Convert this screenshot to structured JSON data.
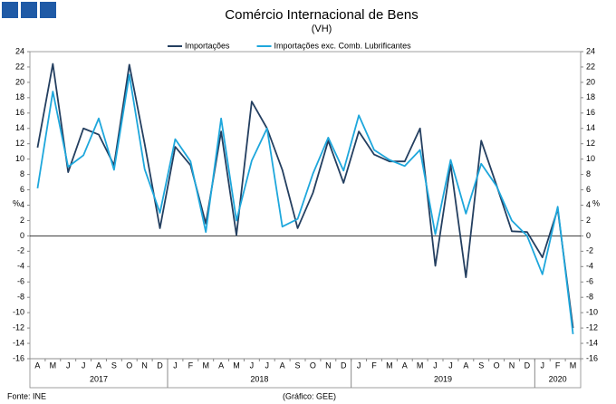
{
  "chart_data": {
    "type": "line",
    "title": "Comércio Internacional de Bens",
    "subtitle": "(VH)",
    "y_unit": "%",
    "categories": [
      "A",
      "M",
      "J",
      "J",
      "A",
      "S",
      "O",
      "N",
      "D",
      "J",
      "F",
      "M",
      "A",
      "M",
      "J",
      "J",
      "A",
      "S",
      "O",
      "N",
      "D",
      "J",
      "F",
      "M",
      "A",
      "M",
      "J",
      "J",
      "A",
      "S",
      "O",
      "N",
      "D",
      "J",
      "F",
      "M"
    ],
    "year_groups": [
      {
        "label": "2017",
        "count": 9
      },
      {
        "label": "2018",
        "count": 12
      },
      {
        "label": "2019",
        "count": 12
      },
      {
        "label": "2020",
        "count": 3
      }
    ],
    "series": [
      {
        "name": "Importações",
        "color": "#243f60",
        "values": [
          11.5,
          22.4,
          8.3,
          14.0,
          13.2,
          9.2,
          22.3,
          12.0,
          1.0,
          11.6,
          9.2,
          1.6,
          13.6,
          0.1,
          17.5,
          14.0,
          8.6,
          1.0,
          5.6,
          12.4,
          6.9,
          13.6,
          10.6,
          9.7,
          9.7,
          14.0,
          -3.9,
          9.3,
          -5.4,
          12.4,
          6.6,
          0.6,
          0.5,
          -2.8,
          3.5,
          -12.0
        ]
      },
      {
        "name": "Importações exc. Comb. Lubrificantes",
        "color": "#1ea7dc",
        "values": [
          6.2,
          18.8,
          9.0,
          10.5,
          15.3,
          8.6,
          21.0,
          8.7,
          3.0,
          12.6,
          9.7,
          0.5,
          15.3,
          2.0,
          9.8,
          14.0,
          1.2,
          2.2,
          8.1,
          12.8,
          8.5,
          15.7,
          11.2,
          9.9,
          9.1,
          11.2,
          0.2,
          9.9,
          2.9,
          9.4,
          6.5,
          2.0,
          0.0,
          -5.0,
          3.8,
          -12.8
        ]
      }
    ],
    "ylim": [
      -16,
      24
    ],
    "yticks": [
      -16,
      -14,
      -12,
      -10,
      -8,
      -6,
      -4,
      -2,
      0,
      2,
      4,
      6,
      8,
      10,
      12,
      14,
      16,
      18,
      20,
      22,
      24
    ],
    "source": "Fonte: INE",
    "credit": "(Gráfico: GEE)"
  }
}
